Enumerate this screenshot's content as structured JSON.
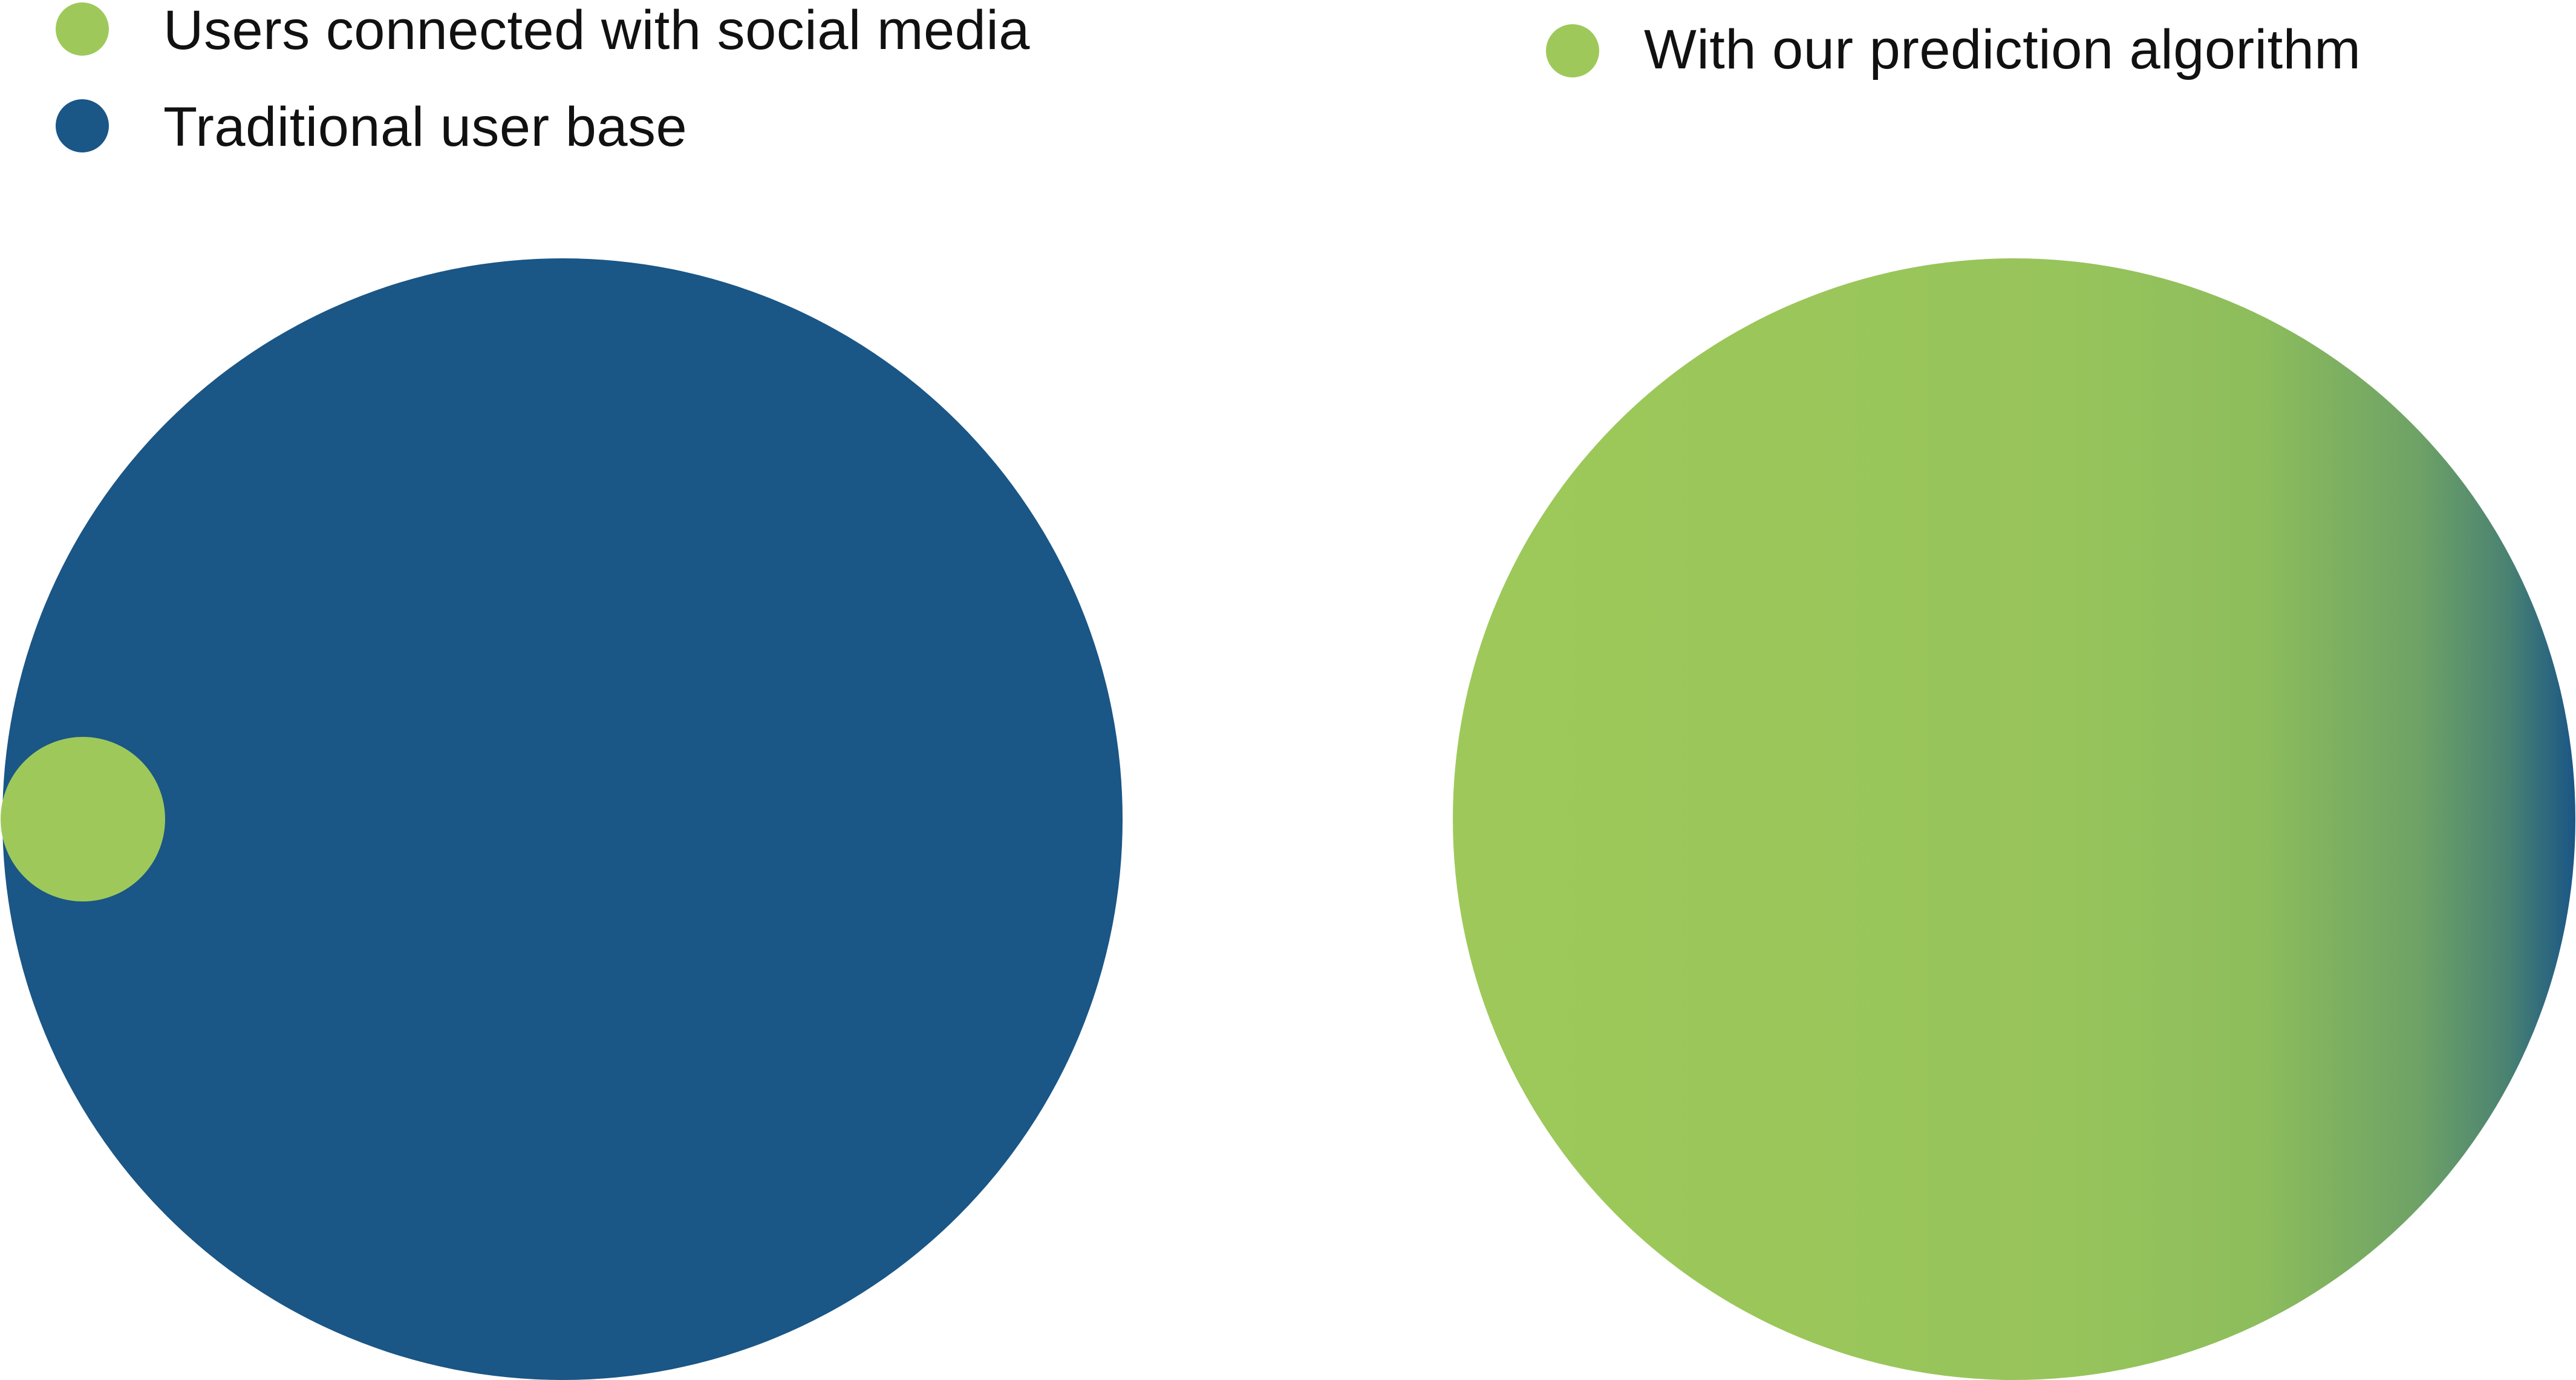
{
  "legend_left": {
    "items": [
      {
        "label": "Users connected with social media",
        "color": "#9ec95a"
      },
      {
        "label": "Traditional user base",
        "color": "#1a5686"
      }
    ]
  },
  "legend_right": {
    "items": [
      {
        "label": "With our prediction algorithm",
        "color": "#9ec95a"
      }
    ]
  },
  "colors": {
    "blue": "#1a5686",
    "green": "#9ec95a",
    "green_mid": "#8dbd5c",
    "teal": "#4a8272"
  },
  "diagram": {
    "left_circle": {
      "fill": "blue"
    },
    "inset_circle": {
      "fill": "green"
    },
    "right_circle": {
      "fill": "green-to-blue gradient"
    }
  }
}
